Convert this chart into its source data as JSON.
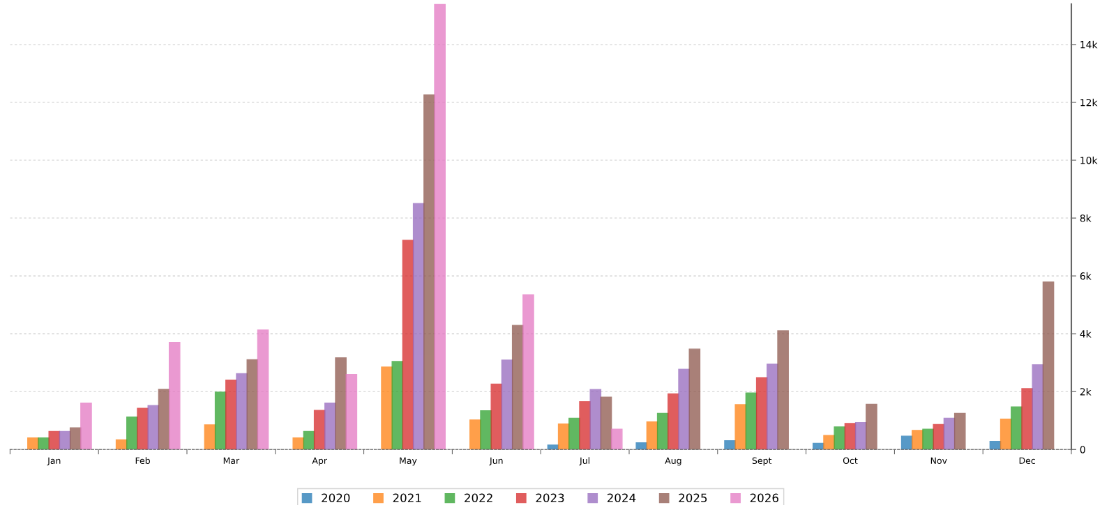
{
  "chart_data": {
    "type": "bar",
    "categories": [
      "Jan",
      "Feb",
      "Mar",
      "Apr",
      "May",
      "Jun",
      "Jul",
      "Aug",
      "Sept",
      "Oct",
      "Nov",
      "Dec"
    ],
    "series": [
      {
        "name": "2020",
        "color": "#1f77b4",
        "values": [
          null,
          null,
          null,
          null,
          null,
          null,
          150,
          230,
          300,
          210,
          460,
          280
        ]
      },
      {
        "name": "2021",
        "color": "#ff7f0e",
        "values": [
          400,
          330,
          850,
          400,
          2850,
          1020,
          880,
          950,
          1550,
          480,
          660,
          1050
        ]
      },
      {
        "name": "2022",
        "color": "#2ca02c",
        "values": [
          400,
          1120,
          1980,
          620,
          3040,
          1340,
          1080,
          1250,
          1950,
          780,
          700,
          1470
        ]
      },
      {
        "name": "2023",
        "color": "#d62728",
        "values": [
          620,
          1420,
          2400,
          1350,
          7230,
          2260,
          1650,
          1920,
          2480,
          900,
          860,
          2100
        ]
      },
      {
        "name": "2024",
        "color": "#9467bd",
        "values": [
          620,
          1520,
          2620,
          1600,
          8500,
          3090,
          2070,
          2770,
          2950,
          930,
          1080,
          2930
        ]
      },
      {
        "name": "2025",
        "color": "#8c564b",
        "values": [
          750,
          2080,
          3100,
          3170,
          12260,
          4290,
          1810,
          3470,
          4100,
          1560,
          1250,
          5790
        ]
      },
      {
        "name": "2026",
        "color": "#e377c2",
        "values": [
          1600,
          3700,
          4130,
          2590,
          15400,
          5350,
          700,
          null,
          null,
          null,
          null,
          null
        ]
      }
    ],
    "ylim": [
      0,
      15400
    ],
    "yticks": [
      0,
      {
        "value": 2000,
        "label": "2k"
      },
      {
        "value": 4000,
        "label": "4k"
      },
      {
        "value": 6000,
        "label": "6k"
      },
      {
        "value": 8000,
        "label": "8k"
      },
      {
        "value": 10000,
        "label": "10k"
      },
      {
        "value": 12000,
        "label": "12k"
      },
      {
        "value": 14000,
        "label": "14k"
      }
    ],
    "grid": "y",
    "legend": "bottom"
  }
}
